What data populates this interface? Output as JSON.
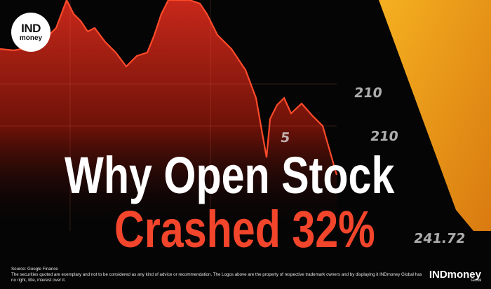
{
  "logo": {
    "top": "IND",
    "bottom": "money"
  },
  "background_labels": [
    "210",
    "210",
    "5",
    "241.72"
  ],
  "headline": {
    "line1": "Why Open Stock",
    "line2": "Crashed 32%"
  },
  "footer": {
    "source": "Source: Google Finance",
    "disclaimer": "The securities quoted are exemplary and not to be considered as any kind of advice or recommendation. The Logos above are the property of respective trademark owners and by displaying it INDmoney Global has no right, title, interest over it."
  },
  "brand": {
    "name": "INDmoney",
    "sub": "Global"
  },
  "colors": {
    "accent_red": "#f2452b",
    "chart_red": "#d62a1a",
    "orange": "#f0a020",
    "background": "#050505"
  }
}
